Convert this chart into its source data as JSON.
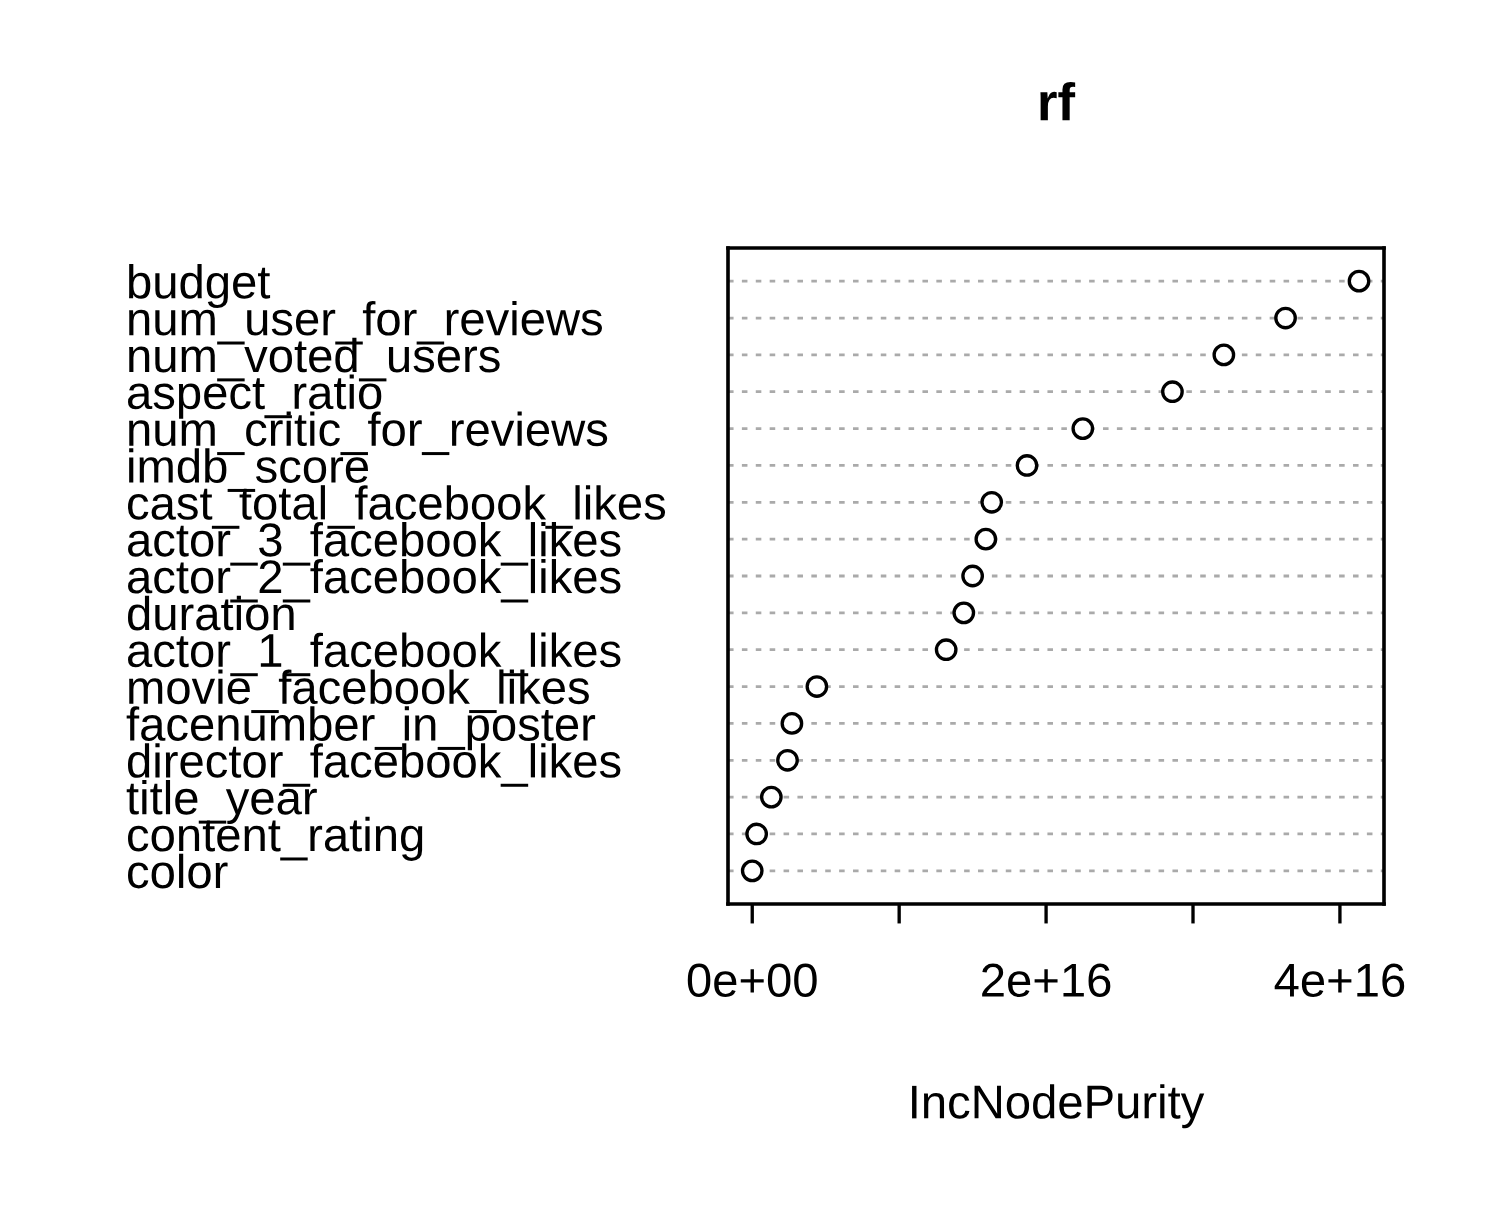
{
  "chart_data": {
    "type": "scatter",
    "title": "rf",
    "xlabel": "IncNodePurity",
    "categories": [
      "budget",
      "num_user_for_reviews",
      "num_voted_users",
      "aspect_ratio",
      "num_critic_for_reviews",
      "imdb_score",
      "cast_total_facebook_likes",
      "actor_3_facebook_likes",
      "actor_2_facebook_likes",
      "duration",
      "actor_1_facebook_likes",
      "movie_facebook_likes",
      "facenumber_in_poster",
      "director_facebook_likes",
      "title_year",
      "content_rating",
      "color"
    ],
    "orientation": "horizontal",
    "values": [
      4.13e+16,
      3.63e+16,
      3.21e+16,
      2.86e+16,
      2.25e+16,
      1.87e+16,
      1.63e+16,
      1.59e+16,
      1.5e+16,
      1.44e+16,
      1.32e+16,
      4400000000000000.0,
      2700000000000000.0,
      2400000000000000.0,
      1300000000000000.0,
      300000000000000.0,
      0.0
    ],
    "color": "#000000",
    "marker": "circle",
    "grid": "y",
    "xlim": [
      -1650000000000000.0,
      4.3e+16
    ],
    "xticks": [
      {
        "value": 0,
        "label": "0e+00"
      },
      {
        "value": 1e+16,
        "label": null
      },
      {
        "value": 2e+16,
        "label": "2e+16"
      },
      {
        "value": 3e+16,
        "label": null
      },
      {
        "value": 4e+16,
        "label": "4e+16"
      }
    ]
  }
}
